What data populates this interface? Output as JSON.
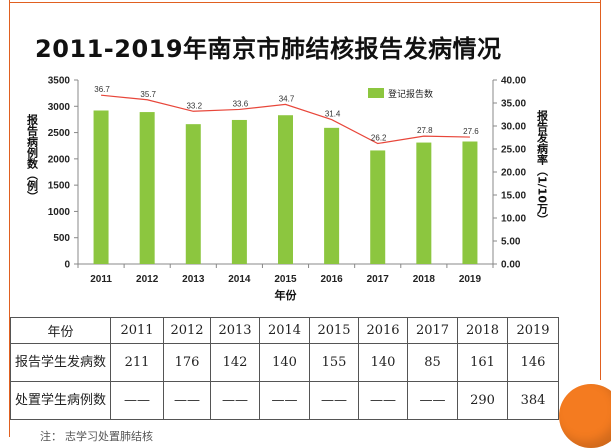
{
  "page_title": "2011-2019年南京市肺结核报告发病情况",
  "chart_data": {
    "type": "bar",
    "categories": [
      "2011",
      "2012",
      "2013",
      "2014",
      "2015",
      "2016",
      "2017",
      "2018",
      "2019"
    ],
    "series": [
      {
        "name": "登记报告数",
        "type": "bar",
        "axis": "left",
        "values": [
          2920,
          2890,
          2660,
          2740,
          2830,
          2590,
          2160,
          2310,
          2330
        ]
      },
      {
        "name": "",
        "type": "line",
        "axis": "right",
        "values": [
          36.7,
          35.7,
          33.2,
          33.6,
          34.7,
          31.4,
          26.2,
          27.8,
          27.6
        ],
        "labels": [
          "36.7",
          "35.7",
          "33.2",
          "33.6",
          "34.7",
          "31.4",
          "26.2",
          "27.8",
          "27.6"
        ]
      }
    ],
    "title": "",
    "xlabel": "年份",
    "ylabel": "报告病例数（例）",
    "ylabel_right": "报告发病率（1/10万）",
    "ylim": [
      0,
      3500
    ],
    "ylim_right": [
      0,
      40
    ],
    "yticks": [
      "0",
      "500",
      "1000",
      "1500",
      "2000",
      "2500",
      "3000",
      "3500"
    ],
    "yticks_right": [
      "0.00",
      "5.00",
      "10.00",
      "15.00",
      "20.00",
      "25.00",
      "30.00",
      "35.00",
      "40.00"
    ],
    "legend": "top-right",
    "colors": {
      "bar": "#8cc63f",
      "line": "#e8463a"
    }
  },
  "table": {
    "header": [
      "年份",
      "2011",
      "2012",
      "2013",
      "2014",
      "2015",
      "2016",
      "2017",
      "2018",
      "2019"
    ],
    "rows": [
      [
        "报告学生发病数",
        "211",
        "176",
        "142",
        "140",
        "155",
        "140",
        "85",
        "161",
        "146"
      ],
      [
        "处置学生病例数",
        "——",
        "——",
        "——",
        "——",
        "——",
        "——",
        "——",
        "290",
        "384"
      ]
    ]
  },
  "footer_text": "注：        志学习处置肺结核"
}
